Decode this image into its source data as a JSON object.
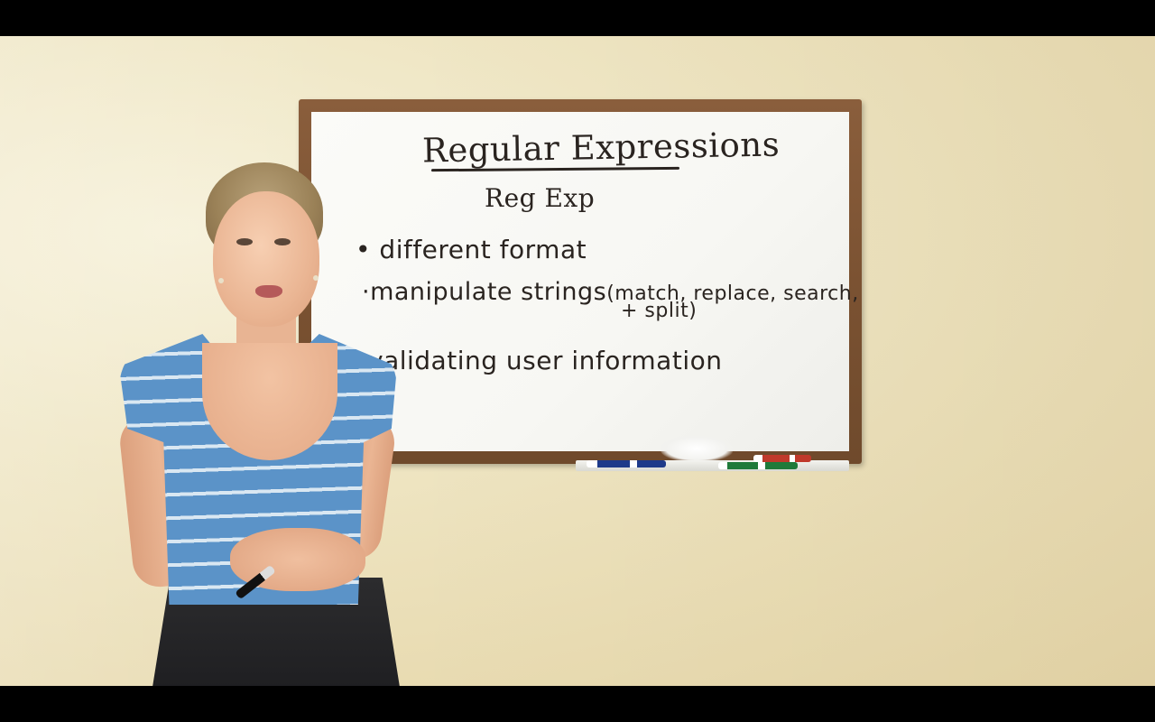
{
  "whiteboard": {
    "title": "Regular Expressions",
    "subtitle": "Reg Exp",
    "bullet_1": "• different format",
    "bullet_2": "·manipulate strings",
    "bullet_2_paren": "(match, replace, search,",
    "bullet_2_cont": "+ split)",
    "bullet_3": "validating user information"
  },
  "colors": {
    "wall": "#efe6c4",
    "board": "#f7f7f3",
    "frame": "#7b5232",
    "shirt": "#5b93c8"
  }
}
